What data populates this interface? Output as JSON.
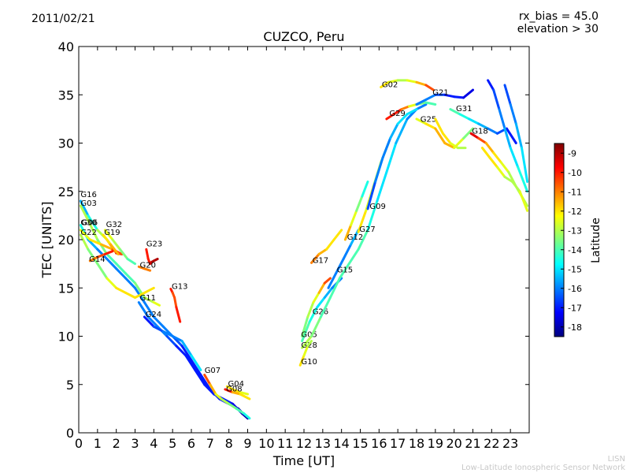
{
  "header": {
    "date": "2011/02/21",
    "rx_bias": "rx_bias = 45.0",
    "elevation": "elevation > 30"
  },
  "footer": {
    "credit_short": "LISN",
    "credit_long": "Low-Latitude Ionospheric Sensor Network"
  },
  "chart_data": {
    "type": "line",
    "title": "CUZCO, Peru",
    "xlabel": "Time [UT]",
    "ylabel": "TEC [UNITS]",
    "xlim": [
      0,
      24
    ],
    "ylim": [
      0,
      40
    ],
    "x_ticks": [
      0,
      1,
      2,
      3,
      4,
      5,
      6,
      7,
      8,
      9,
      10,
      11,
      12,
      13,
      14,
      15,
      16,
      17,
      18,
      19,
      20,
      21,
      22,
      23
    ],
    "y_ticks": [
      0,
      5,
      10,
      15,
      20,
      25,
      30,
      35,
      40
    ],
    "grid": false,
    "colorbar": {
      "label": "Latitude",
      "range": [
        -18.5,
        -8.5
      ],
      "ticks": [
        -9,
        -10,
        -11,
        -12,
        -13,
        -14,
        -15,
        -16,
        -17,
        -18
      ],
      "colormap": [
        "#00007f",
        "#0000ff",
        "#007fff",
        "#00ffff",
        "#7fff7f",
        "#ffff00",
        "#ff7f00",
        "#ff0000",
        "#7f0000"
      ]
    },
    "series": [
      {
        "name": "G16",
        "label_at": [
          0.1,
          24.4
        ],
        "x": [
          0.1,
          0.5,
          1.0,
          1.5,
          2.0,
          2.3
        ],
        "y": [
          24.0,
          22.5,
          21.0,
          20.0,
          18.6,
          18.5
        ],
        "lat": [
          -16,
          -15,
          -14,
          -12,
          -10,
          -9
        ]
      },
      {
        "name": "G03",
        "label_at": [
          0.1,
          23.5
        ],
        "x": [
          0.1,
          0.5,
          1.0,
          1.5,
          2.0,
          2.5,
          3.0,
          3.5,
          4.0,
          4.3
        ],
        "y": [
          23.5,
          22.0,
          20.0,
          18.5,
          17.5,
          16.5,
          15.5,
          14.0,
          13.5,
          13.2
        ],
        "lat": [
          -13,
          -13,
          -13,
          -14,
          -14,
          -14,
          -14,
          -13,
          -13,
          -12
        ]
      },
      {
        "name": "G30",
        "label_at": [
          0.1,
          21.5
        ],
        "x": [
          0.1,
          0.5,
          1.0,
          1.5,
          2.0,
          2.5,
          3.0,
          3.5,
          4.0,
          4.5,
          5.0,
          5.5,
          6.0,
          6.5,
          7.0,
          7.5,
          8.0,
          8.5,
          9.0
        ],
        "y": [
          21.5,
          20.0,
          19.0,
          18.0,
          17.0,
          16.0,
          15.0,
          13.5,
          12.0,
          11.0,
          10.0,
          9.0,
          7.5,
          6.0,
          4.5,
          3.5,
          3.0,
          2.5,
          1.5
        ],
        "lat": [
          -14,
          -15,
          -16,
          -16,
          -16,
          -16,
          -16,
          -16,
          -16,
          -16,
          -16,
          -17,
          -17,
          -17,
          -17,
          -17,
          -17,
          -18,
          -18
        ]
      },
      {
        "name": "G06",
        "label_at": [
          0.15,
          21.5
        ],
        "x": [
          0.1,
          0.6,
          1.2,
          1.8,
          2.3
        ],
        "y": [
          21.0,
          20.0,
          19.5,
          19.0,
          18.5
        ],
        "lat": [
          -13,
          -12,
          -12,
          -11,
          -10
        ]
      },
      {
        "name": "G22",
        "label_at": [
          0.1,
          20.5
        ],
        "x": [
          0.1,
          0.5,
          1.0,
          1.5,
          2.0,
          2.5,
          3.0,
          3.5,
          4.0
        ],
        "y": [
          20.5,
          19.0,
          17.5,
          16.0,
          15.0,
          14.5,
          14.0,
          14.5,
          15.0
        ],
        "lat": [
          -13,
          -13,
          -14,
          -13,
          -12,
          -12,
          -12,
          -12,
          -12
        ]
      },
      {
        "name": "G32",
        "label_at": [
          1.45,
          21.3
        ],
        "x": [
          1.4,
          1.8,
          2.2,
          2.6,
          3.0
        ],
        "y": [
          21.0,
          20.0,
          19.0,
          18.0,
          17.5
        ],
        "lat": [
          -12,
          -13,
          -13,
          -14,
          -14
        ]
      },
      {
        "name": "G19",
        "label_at": [
          1.35,
          20.5
        ],
        "x": [
          1.3,
          1.7,
          2.1
        ],
        "y": [
          20.5,
          19.5,
          18.5
        ],
        "lat": [
          -12,
          -12,
          -11
        ]
      },
      {
        "name": "G14",
        "label_at": [
          0.55,
          17.7
        ],
        "x": [
          0.6,
          1.0,
          1.4,
          1.8
        ],
        "y": [
          17.8,
          18.2,
          18.5,
          18.8
        ],
        "lat": [
          -11,
          -11,
          -10,
          -10
        ]
      },
      {
        "name": "G23",
        "label_at": [
          3.6,
          19.3
        ],
        "x": [
          3.6,
          3.7,
          3.8,
          3.9,
          4.0,
          4.2
        ],
        "y": [
          19.0,
          18.0,
          17.5,
          17.7,
          17.8,
          18.0
        ],
        "lat": [
          -10,
          -10,
          -10,
          -9,
          -9,
          -9
        ]
      },
      {
        "name": "G20",
        "label_at": [
          3.25,
          17.1
        ],
        "x": [
          3.2,
          3.5,
          3.8
        ],
        "y": [
          17.2,
          17.0,
          16.8
        ],
        "lat": [
          -11,
          -11,
          -11
        ]
      },
      {
        "name": "G13",
        "label_at": [
          4.95,
          14.9
        ],
        "x": [
          4.9,
          5.0,
          5.1,
          5.2,
          5.4
        ],
        "y": [
          14.9,
          14.5,
          14.0,
          13.0,
          11.5
        ],
        "lat": [
          -10,
          -10,
          -11,
          -10,
          -10
        ]
      },
      {
        "name": "G11",
        "label_at": [
          3.25,
          13.7
        ],
        "x": [
          3.2,
          3.7,
          4.2,
          4.7,
          5.2,
          5.7,
          6.2,
          6.7,
          7.2,
          7.7,
          8.2,
          8.7,
          9.0
        ],
        "y": [
          13.5,
          12.0,
          11.0,
          10.0,
          9.0,
          8.0,
          6.5,
          5.0,
          4.0,
          3.5,
          3.0,
          2.0,
          1.5
        ],
        "lat": [
          -16,
          -16,
          -16,
          -16,
          -17,
          -17,
          -17,
          -17,
          -17,
          -17,
          -17,
          -18,
          -18
        ]
      },
      {
        "name": "G24",
        "label_at": [
          3.55,
          12.0
        ],
        "x": [
          3.5,
          4.0,
          4.5,
          5.0,
          5.5,
          6.0,
          6.5
        ],
        "y": [
          12.0,
          11.0,
          10.5,
          10.0,
          9.5,
          8.0,
          6.5
        ],
        "lat": [
          -17,
          -17,
          -16,
          -16,
          -16,
          -15,
          -15
        ]
      },
      {
        "name": "G07",
        "label_at": [
          6.7,
          6.2
        ],
        "x": [
          6.7,
          7.0,
          7.3,
          7.6,
          8.0,
          8.4,
          8.8,
          9.1
        ],
        "y": [
          6.0,
          5.0,
          4.0,
          3.5,
          3.0,
          2.5,
          2.0,
          1.5
        ],
        "lat": [
          -10,
          -11,
          -12,
          -13,
          -13,
          -14,
          -14,
          -15
        ]
      },
      {
        "name": "G04",
        "label_at": [
          7.95,
          4.8
        ],
        "x": [
          7.9,
          8.2,
          8.6,
          9.0
        ],
        "y": [
          4.8,
          4.5,
          4.2,
          4.0
        ],
        "lat": [
          -12,
          -12,
          -12,
          -13
        ]
      },
      {
        "name": "G08",
        "label_at": [
          7.85,
          4.3
        ],
        "x": [
          7.8,
          8.2,
          8.6,
          9.1
        ],
        "y": [
          4.5,
          4.2,
          4.0,
          3.5
        ],
        "lat": [
          -9,
          -11,
          -12,
          -12
        ]
      },
      {
        "name": "G17",
        "label_at": [
          12.45,
          17.6
        ],
        "x": [
          12.4,
          12.8,
          13.2,
          13.6,
          14.0
        ],
        "y": [
          17.6,
          18.5,
          19.0,
          20.0,
          21.0
        ],
        "lat": [
          -11,
          -11,
          -12,
          -12,
          -12
        ]
      },
      {
        "name": "G26",
        "label_at": [
          12.45,
          12.3
        ],
        "x": [
          11.9,
          12.3,
          12.7,
          13.1,
          13.5,
          14.0
        ],
        "y": [
          9.5,
          11.5,
          13.0,
          14.0,
          15.0,
          16.0
        ],
        "lat": [
          -14,
          -14,
          -15,
          -15,
          -16,
          -16
        ]
      },
      {
        "name": "G05",
        "label_at": [
          11.85,
          9.9
        ],
        "x": [
          11.9,
          12.2,
          12.5,
          12.8,
          13.1,
          13.4
        ],
        "y": [
          10.0,
          12.0,
          13.5,
          14.5,
          15.5,
          16.0
        ],
        "lat": [
          -14,
          -13,
          -13,
          -12,
          -11,
          -10
        ]
      },
      {
        "name": "G28",
        "label_at": [
          11.85,
          8.8
        ],
        "x": [
          11.9,
          12.4,
          12.9,
          13.4,
          13.9,
          14.4,
          14.9,
          15.4,
          15.9,
          16.4,
          16.9,
          17.5,
          18.0,
          18.5
        ],
        "y": [
          8.8,
          10.0,
          12.0,
          14.0,
          16.0,
          17.5,
          19.0,
          21.0,
          24.0,
          27.0,
          30.0,
          32.5,
          33.5,
          34.0
        ],
        "lat": [
          -13,
          -13,
          -14,
          -14,
          -14,
          -14,
          -14,
          -14,
          -15,
          -15,
          -15,
          -16,
          -16,
          -16
        ]
      },
      {
        "name": "G10",
        "label_at": [
          11.85,
          7.1
        ],
        "x": [
          11.8,
          12.0,
          12.2,
          12.4
        ],
        "y": [
          7.0,
          8.0,
          9.0,
          9.5
        ],
        "lat": [
          -12,
          -12,
          -13,
          -13
        ]
      },
      {
        "name": "G15",
        "label_at": [
          13.75,
          16.6
        ],
        "x": [
          13.3,
          13.7,
          14.1,
          14.5,
          14.9
        ],
        "y": [
          15.0,
          16.5,
          18.0,
          19.5,
          21.0
        ],
        "lat": [
          -16,
          -16,
          -16,
          -16,
          -15
        ]
      },
      {
        "name": "G12",
        "label_at": [
          14.3,
          20.0
        ],
        "x": [
          14.2,
          14.5,
          14.8,
          15.1,
          15.4
        ],
        "y": [
          20.0,
          21.5,
          23.0,
          24.5,
          26.0
        ],
        "lat": [
          -11,
          -12,
          -13,
          -14,
          -15
        ]
      },
      {
        "name": "G27",
        "label_at": [
          14.95,
          20.8
        ],
        "x": [
          14.9,
          15.3,
          15.7,
          16.1,
          16.5
        ],
        "y": [
          20.8,
          23.0,
          25.5,
          28.0,
          30.0
        ],
        "lat": [
          -12,
          -12,
          -13,
          -13,
          -13
        ]
      },
      {
        "name": "G09",
        "label_at": [
          15.5,
          23.2
        ],
        "x": [
          15.4,
          15.8,
          16.2,
          16.6,
          17.0,
          17.5,
          18.0
        ],
        "y": [
          23.2,
          26.0,
          28.5,
          30.5,
          32.0,
          33.0,
          33.5
        ],
        "lat": [
          -17,
          -16,
          -16,
          -16,
          -15,
          -15,
          -15
        ]
      },
      {
        "name": "G02",
        "label_at": [
          16.15,
          35.8
        ],
        "x": [
          16.1,
          16.5,
          17.0,
          17.5,
          18.0,
          18.5,
          18.9
        ],
        "y": [
          35.8,
          36.3,
          36.5,
          36.5,
          36.3,
          36.0,
          35.5
        ],
        "lat": [
          -12,
          -12,
          -13,
          -13,
          -12,
          -11,
          -10
        ]
      },
      {
        "name": "G29",
        "label_at": [
          16.55,
          32.8
        ],
        "x": [
          16.4,
          16.8,
          17.2,
          17.6,
          18.0,
          18.5,
          19.0
        ],
        "y": [
          32.5,
          33.0,
          33.5,
          33.8,
          34.0,
          34.2,
          34.0
        ],
        "lat": [
          -10,
          -10,
          -10,
          -12,
          -13,
          -14,
          -14
        ]
      },
      {
        "name": "G21",
        "label_at": [
          18.85,
          35.0
        ],
        "x": [
          18.0,
          18.5,
          19.0,
          19.5,
          20.0,
          20.5,
          21.0
        ],
        "y": [
          34.0,
          34.5,
          35.0,
          35.0,
          34.8,
          34.7,
          35.5
        ],
        "lat": [
          -16,
          -16,
          -16,
          -17,
          -17,
          -17,
          -18
        ]
      },
      {
        "name": "G31",
        "label_at": [
          20.1,
          33.3
        ],
        "x": [
          19.8,
          20.3,
          20.8,
          21.3,
          21.8,
          22.3,
          22.8,
          23.3
        ],
        "y": [
          33.5,
          33.0,
          32.5,
          32.0,
          31.5,
          31.0,
          31.5,
          30.0
        ],
        "lat": [
          -14,
          -14,
          -15,
          -15,
          -16,
          -16,
          -17,
          -17
        ]
      },
      {
        "name": "G25",
        "label_at": [
          18.2,
          32.2
        ],
        "x": [
          18.0,
          18.5,
          19.0,
          19.5,
          20.0,
          20.5,
          21.0
        ],
        "y": [
          32.5,
          32.0,
          31.5,
          30.0,
          29.5,
          30.5,
          31.5
        ],
        "lat": [
          -13,
          -12,
          -12,
          -11,
          -12,
          -13,
          -14
        ]
      },
      {
        "name": "G18",
        "label_at": [
          20.95,
          31.0
        ],
        "x": [
          20.9,
          21.3,
          21.7,
          22.1,
          22.5,
          22.9,
          23.3,
          23.9
        ],
        "y": [
          31.0,
          30.5,
          30.0,
          29.0,
          28.0,
          27.0,
          25.5,
          23.5
        ],
        "lat": [
          -9,
          -10,
          -11,
          -12,
          -12,
          -13,
          -13,
          -13
        ]
      },
      {
        "name": "",
        "label_at": null,
        "x": [
          21.8,
          22.1,
          22.4,
          22.7,
          23.0,
          23.4,
          23.9
        ],
        "y": [
          36.5,
          35.5,
          33.5,
          31.5,
          29.5,
          27.5,
          25.0
        ],
        "lat": [
          -17,
          -17,
          -16,
          -16,
          -15,
          -15,
          -14
        ]
      },
      {
        "name": "",
        "label_at": null,
        "x": [
          22.7,
          23.0,
          23.3,
          23.6,
          23.9
        ],
        "y": [
          36.0,
          34.0,
          32.0,
          29.5,
          26.0
        ],
        "lat": [
          -17,
          -16,
          -16,
          -15,
          -15
        ]
      },
      {
        "name": "",
        "label_at": null,
        "x": [
          21.5,
          21.9,
          22.3,
          22.7,
          23.1,
          23.5,
          23.9
        ],
        "y": [
          29.5,
          28.5,
          27.5,
          26.5,
          26.0,
          25.0,
          23.0
        ],
        "lat": [
          -12,
          -12,
          -12,
          -13,
          -13,
          -13,
          -12
        ]
      },
      {
        "name": "",
        "label_at": null,
        "x": [
          19.0,
          19.4,
          19.8,
          20.2,
          20.6
        ],
        "y": [
          32.5,
          31.0,
          30.0,
          29.5,
          29.5
        ],
        "lat": [
          -12,
          -12,
          -12,
          -13,
          -13
        ]
      }
    ]
  }
}
